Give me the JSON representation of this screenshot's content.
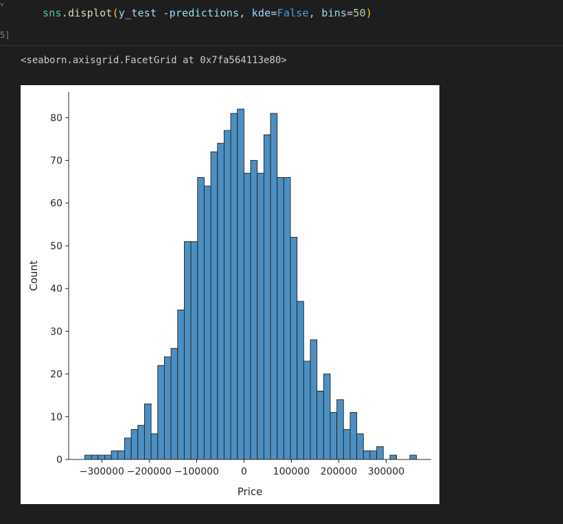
{
  "cell": {
    "collapse_glyph": "˅",
    "exec_count": "5]",
    "code": {
      "ns": "sns",
      "dot": ".",
      "fn": "displot",
      "open": "(",
      "arg1": "y_test",
      "minus": " -",
      "arg2": "predictions",
      "comma1": ", ",
      "kw1": "kde",
      "eq1": "=",
      "val1": "False",
      "comma2": ", ",
      "kw2": "bins",
      "eq2": "=",
      "val2": "50",
      "close": ")"
    }
  },
  "output": {
    "text": "<seaborn.axisgrid.FacetGrid at 0x7fa564113e80>"
  },
  "colors": {
    "background": "#1e1e1e",
    "bar_fill": "#4c8fc2",
    "bar_edge": "#1f1f1f",
    "plot_bg": "#ffffff"
  },
  "chart_data": {
    "type": "bar",
    "subtype": "histogram",
    "xlabel": "Price",
    "ylabel": "Count",
    "xlim": [
      -370000,
      395000
    ],
    "ylim": [
      0,
      86
    ],
    "bin_start": -336000,
    "bin_width": 14000,
    "counts": [
      1,
      1,
      1,
      1,
      2,
      2,
      5,
      7,
      8,
      13,
      6,
      22,
      24,
      26,
      35,
      51,
      51,
      66,
      64,
      72,
      74,
      77,
      81,
      82,
      67,
      70,
      67,
      76,
      81,
      66,
      66,
      52,
      37,
      23,
      28,
      16,
      20,
      11,
      14,
      7,
      11,
      6,
      2,
      2,
      3,
      0,
      1,
      0,
      0,
      1
    ],
    "x_ticks": [
      -300000,
      -200000,
      -100000,
      0,
      100000,
      200000,
      300000
    ],
    "x_tick_labels": [
      "−300000",
      "−200000",
      "−100000",
      "0",
      "100000",
      "200000",
      "300000"
    ],
    "y_ticks": [
      0,
      10,
      20,
      30,
      40,
      50,
      60,
      70,
      80
    ],
    "y_tick_labels": [
      "0",
      "10",
      "20",
      "30",
      "40",
      "50",
      "60",
      "70",
      "80"
    ],
    "grid": false,
    "legend": "none"
  }
}
